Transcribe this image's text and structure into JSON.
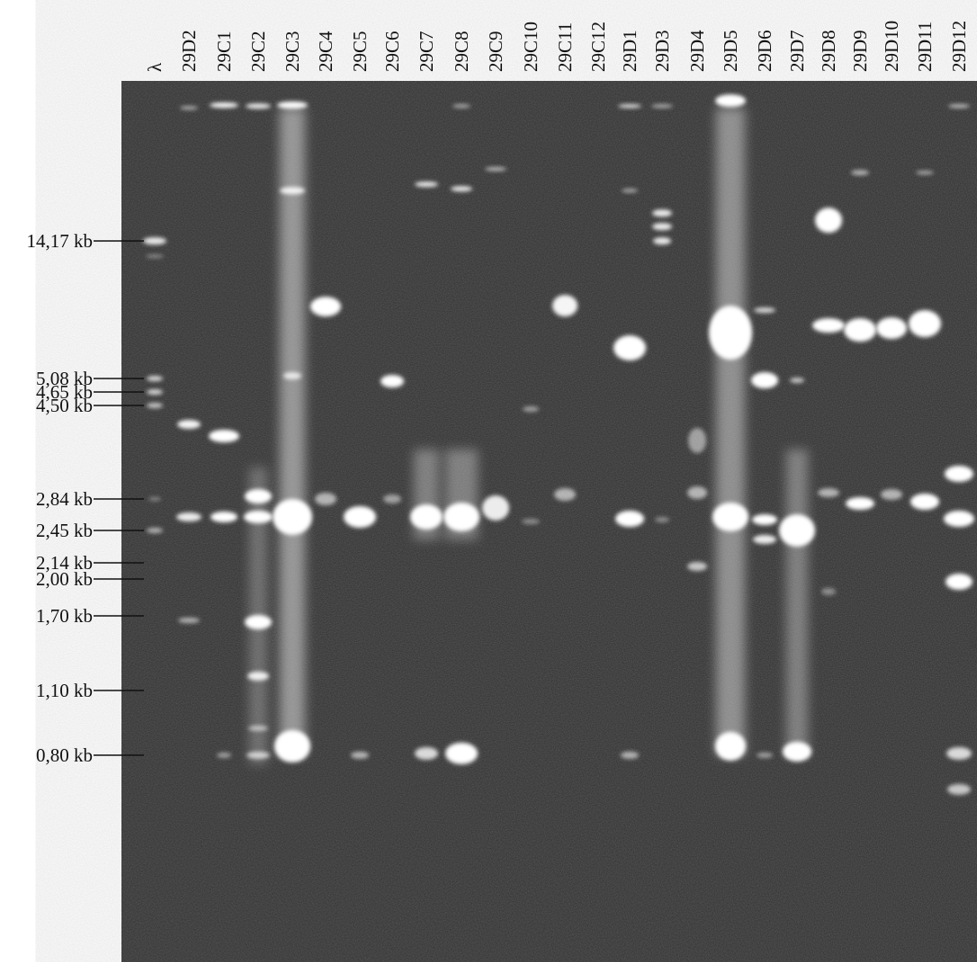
{
  "lanes": [
    "λ",
    "29D2",
    "29C1",
    "29C2",
    "29C3",
    "29C4",
    "29C5",
    "29C6",
    "29C7",
    "29C8",
    "29C9",
    "29C10",
    "29C11",
    "29C12",
    "29D1",
    "29D3",
    "29D4",
    "29D5",
    "29D6",
    "29D7",
    "29D8",
    "29D9",
    "29D10",
    "29D11",
    "29D12"
  ],
  "size_markers": [
    "14,17 kb",
    "5,08 kb",
    "4,65 kb",
    "4,50 kb",
    "2,84 kb",
    "2,45 kb",
    "2,14 kb",
    "2,00 kb",
    "1,70 kb",
    "1,10 kb",
    "0,80 kb"
  ]
}
